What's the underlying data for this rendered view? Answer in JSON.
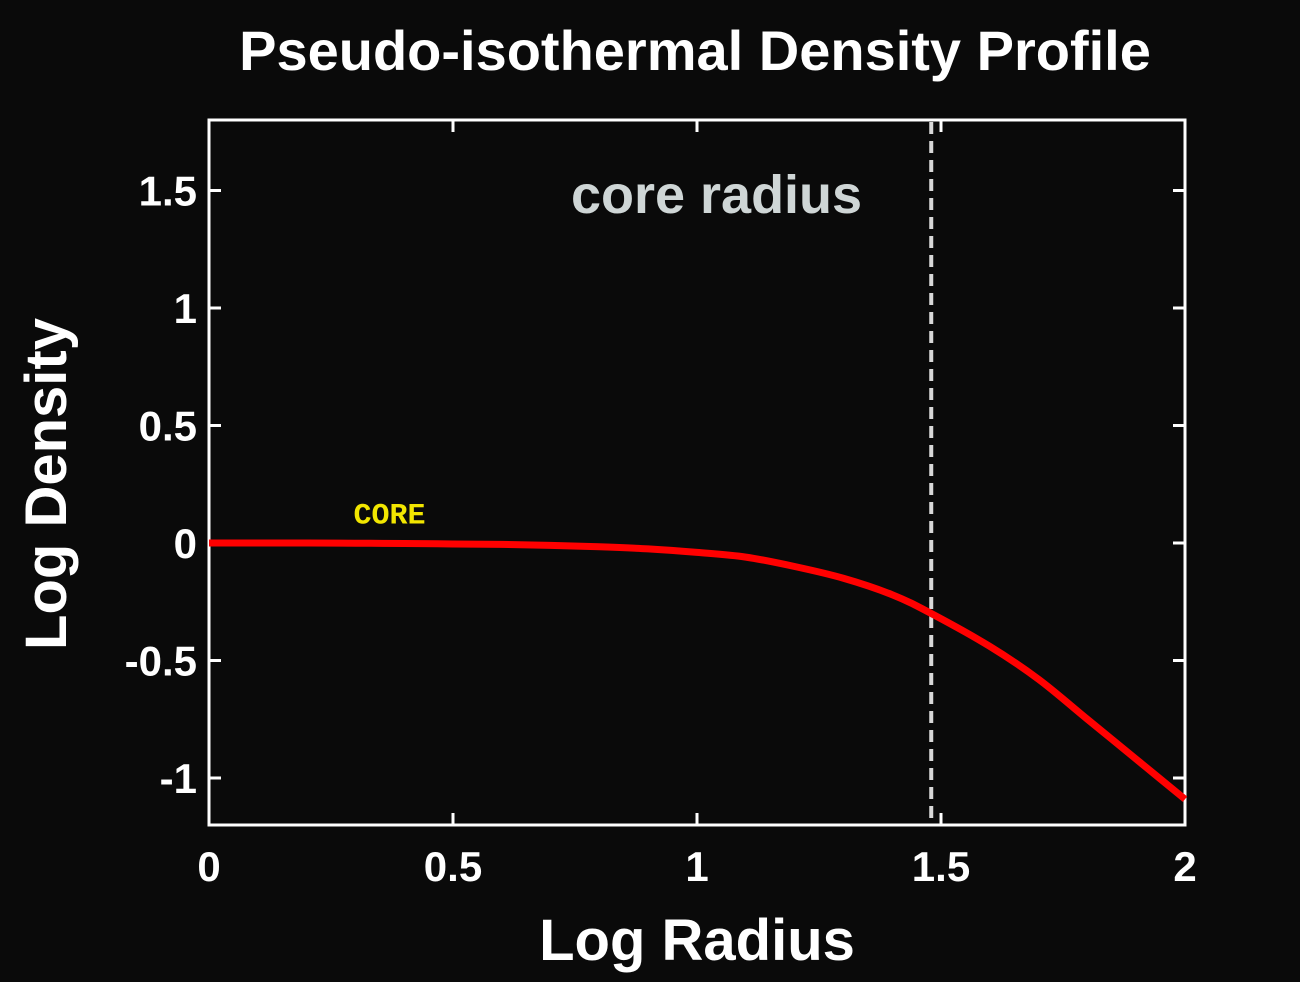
{
  "chart_data": {
    "type": "line",
    "title": "Pseudo-isothermal Density Profile",
    "xlabel": "Log Radius",
    "ylabel": "Log Density",
    "xlim": [
      0,
      2
    ],
    "ylim": [
      -1.2,
      1.8
    ],
    "x_ticks": [
      0,
      0.5,
      1,
      1.5,
      2
    ],
    "x_tick_labels": [
      "0",
      "0.5",
      "1",
      "1.5",
      "2"
    ],
    "y_ticks": [
      1.5,
      1,
      0.5,
      0,
      -0.5,
      -1
    ],
    "y_tick_labels": [
      "1.5",
      "1",
      "0.5",
      "0",
      "-0.5",
      "-1"
    ],
    "grid": false,
    "series": [
      {
        "color": "#ff0000",
        "x": [
          0,
          0.1,
          0.2,
          0.3,
          0.4,
          0.5,
          0.6,
          0.7,
          0.8,
          0.9,
          1.0,
          1.1,
          1.2,
          1.3,
          1.4,
          1.48,
          1.6,
          1.7,
          1.8,
          1.9,
          2.0
        ],
        "y": [
          0,
          0,
          0,
          -0.001,
          -0.002,
          -0.004,
          -0.006,
          -0.01,
          -0.016,
          -0.025,
          -0.04,
          -0.06,
          -0.1,
          -0.15,
          -0.22,
          -0.3,
          -0.44,
          -0.58,
          -0.75,
          -0.92,
          -1.09
        ]
      }
    ],
    "reference_lines": [
      {
        "orientation": "vertical",
        "x": 1.48,
        "style": "dashed",
        "color": "#d8d8d8"
      }
    ],
    "annotations": [
      {
        "id": "core_radius",
        "text": "core radius",
        "x": 1.04,
        "y": 1.49,
        "color": "#cfd6d6"
      },
      {
        "id": "core",
        "text": "CORE",
        "x": 0.37,
        "y": 0.13,
        "color": "#f2e600"
      }
    ]
  },
  "colors": {
    "background": "#0a0a0a",
    "axes": "#ffffff",
    "curve": "#ff0000"
  }
}
